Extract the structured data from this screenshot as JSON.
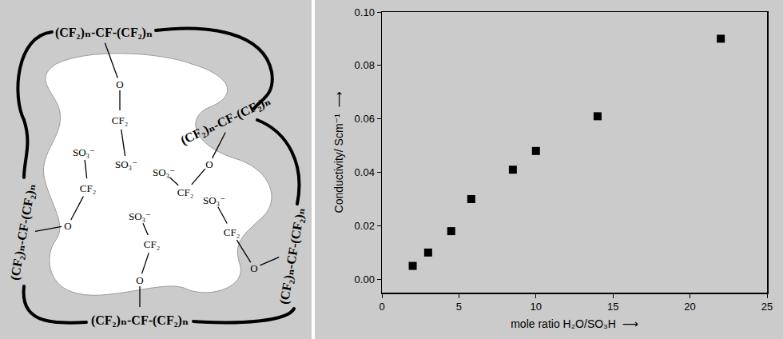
{
  "chart_data": {
    "type": "scatter",
    "x": [
      2,
      3,
      4.5,
      5.8,
      8.5,
      10,
      14,
      22
    ],
    "values": [
      0.005,
      0.01,
      0.018,
      0.03,
      0.041,
      0.048,
      0.061,
      0.09
    ],
    "color": "#000000",
    "marker": "square",
    "x_label": "mole ratio H₂O/SO₃H  ⟶",
    "y_label": "Conductivity/ Scm⁻¹  ⟶",
    "xlim": [
      0,
      25
    ],
    "xticks": [
      0,
      5,
      10,
      15,
      20,
      25
    ],
    "ylim": [
      -0.005,
      0.1
    ],
    "yticks": [
      {
        "value": 0,
        "label": "0.00"
      },
      {
        "value": 0.02,
        "label": "0.02"
      },
      {
        "value": 0.04,
        "label": "0.04"
      },
      {
        "value": 0.06,
        "label": "0.06"
      },
      {
        "value": 0.08,
        "label": "0.08"
      },
      {
        "value": 0.1,
        "label": "0.10"
      }
    ],
    "grid": false
  },
  "diagram": {
    "backbone": "(CF₂)ₙ-CF-(CF₂)ₙ",
    "ether": "O",
    "spacer": "CF₂",
    "acid": "SO₃⁻"
  }
}
